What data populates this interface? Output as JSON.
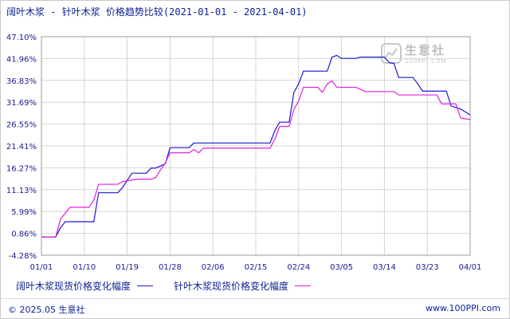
{
  "header": {
    "title": "阔叶木浆 - 针叶木浆 价格趋势比较(2021-01-01 - 2021-04-01)"
  },
  "watermark": {
    "name": "生意社",
    "url": "100PPI.COM"
  },
  "footer": {
    "copyright": "© 2025.05 生意社",
    "site": "www.100PPI.com"
  },
  "colors": {
    "series_hardwood": "#1a1ad0",
    "series_softwood": "#e01fe0",
    "tick_text": "#1a1a8f",
    "grid": "#d4d4d4"
  },
  "chart_data": {
    "type": "line",
    "title": "阔叶木浆 - 针叶木浆 价格趋势比较(2021-01-01 - 2021-04-01)",
    "xlabel": "",
    "ylabel": "",
    "x_unit": "day",
    "x_ticks": [
      "01/01",
      "01/10",
      "01/19",
      "01/28",
      "02/06",
      "02/15",
      "02/24",
      "03/05",
      "03/14",
      "03/23",
      "04/01"
    ],
    "x_dates": [
      "2021-01-01",
      "2021-01-10",
      "2021-01-19",
      "2021-01-28",
      "2021-02-06",
      "2021-02-15",
      "2021-02-24",
      "2021-03-05",
      "2021-03-14",
      "2021-03-23",
      "2021-04-01"
    ],
    "y_ticks": [
      "-4.28%",
      "0.86%",
      "5.99%",
      "11.13%",
      "16.27%",
      "21.41%",
      "26.55%",
      "31.69%",
      "36.83%",
      "41.96%",
      "47.10%"
    ],
    "ylim": [
      -4.28,
      47.1
    ],
    "grid": true,
    "legend_position": "bottom",
    "series": [
      {
        "name": "阔叶木浆现货价格变化幅度",
        "color": "#1a1ad0",
        "points": [
          [
            "2021-01-01",
            0
          ],
          [
            "2021-01-04",
            0
          ],
          [
            "2021-01-05",
            2.2
          ],
          [
            "2021-01-06",
            3.6
          ],
          [
            "2021-01-12",
            3.6
          ],
          [
            "2021-01-13",
            10.4
          ],
          [
            "2021-01-17",
            10.4
          ],
          [
            "2021-01-18",
            11.6
          ],
          [
            "2021-01-20",
            15.0
          ],
          [
            "2021-01-23",
            15.0
          ],
          [
            "2021-01-24",
            16.2
          ],
          [
            "2021-01-25",
            16.2
          ],
          [
            "2021-01-27",
            17.2
          ],
          [
            "2021-01-28",
            21.0
          ],
          [
            "2021-02-01",
            21.0
          ],
          [
            "2021-02-02",
            22.1
          ],
          [
            "2021-02-18",
            22.1
          ],
          [
            "2021-02-19",
            25.0
          ],
          [
            "2021-02-20",
            27.0
          ],
          [
            "2021-02-22",
            27.0
          ],
          [
            "2021-02-23",
            34.0
          ],
          [
            "2021-02-24",
            36.0
          ],
          [
            "2021-02-25",
            39.0
          ],
          [
            "2021-03-02",
            39.0
          ],
          [
            "2021-03-03",
            42.3
          ],
          [
            "2021-03-04",
            42.7
          ],
          [
            "2021-03-05",
            42.0
          ],
          [
            "2021-03-08",
            42.0
          ],
          [
            "2021-03-09",
            42.3
          ],
          [
            "2021-03-14",
            42.3
          ],
          [
            "2021-03-15",
            41.0
          ],
          [
            "2021-03-16",
            40.8
          ],
          [
            "2021-03-17",
            37.5
          ],
          [
            "2021-03-20",
            37.5
          ],
          [
            "2021-03-21",
            36.0
          ],
          [
            "2021-03-22",
            34.3
          ],
          [
            "2021-03-27",
            34.3
          ],
          [
            "2021-03-28",
            30.8
          ],
          [
            "2021-03-30",
            30.1
          ],
          [
            "2021-04-01",
            28.7
          ]
        ]
      },
      {
        "name": "针叶木浆现货价格变化幅度",
        "color": "#e01fe0",
        "points": [
          [
            "2021-01-01",
            0
          ],
          [
            "2021-01-04",
            0
          ],
          [
            "2021-01-05",
            4.2
          ],
          [
            "2021-01-07",
            7.0
          ],
          [
            "2021-01-11",
            7.0
          ],
          [
            "2021-01-12",
            8.7
          ],
          [
            "2021-01-13",
            12.4
          ],
          [
            "2021-01-17",
            12.4
          ],
          [
            "2021-01-18",
            13.0
          ],
          [
            "2021-01-21",
            13.6
          ],
          [
            "2021-01-24",
            13.6
          ],
          [
            "2021-01-25",
            14.0
          ],
          [
            "2021-01-26",
            15.8
          ],
          [
            "2021-01-27",
            17.4
          ],
          [
            "2021-01-28",
            19.8
          ],
          [
            "2021-02-01",
            19.8
          ],
          [
            "2021-02-02",
            20.6
          ],
          [
            "2021-02-03",
            19.8
          ],
          [
            "2021-02-04",
            20.9
          ],
          [
            "2021-02-18",
            20.9
          ],
          [
            "2021-02-19",
            23.0
          ],
          [
            "2021-02-20",
            26.0
          ],
          [
            "2021-02-22",
            26.0
          ],
          [
            "2021-02-23",
            30.0
          ],
          [
            "2021-02-24",
            32.0
          ],
          [
            "2021-02-25",
            35.2
          ],
          [
            "2021-02-28",
            35.2
          ],
          [
            "2021-03-01",
            34.0
          ],
          [
            "2021-03-02",
            36.0
          ],
          [
            "2021-03-03",
            36.7
          ],
          [
            "2021-03-04",
            35.2
          ],
          [
            "2021-03-08",
            35.2
          ],
          [
            "2021-03-10",
            34.2
          ],
          [
            "2021-03-16",
            34.2
          ],
          [
            "2021-03-17",
            33.4
          ],
          [
            "2021-03-25",
            33.4
          ],
          [
            "2021-03-26",
            31.3
          ],
          [
            "2021-03-29",
            31.3
          ],
          [
            "2021-03-30",
            28.0
          ],
          [
            "2021-04-01",
            27.6
          ]
        ]
      }
    ]
  }
}
